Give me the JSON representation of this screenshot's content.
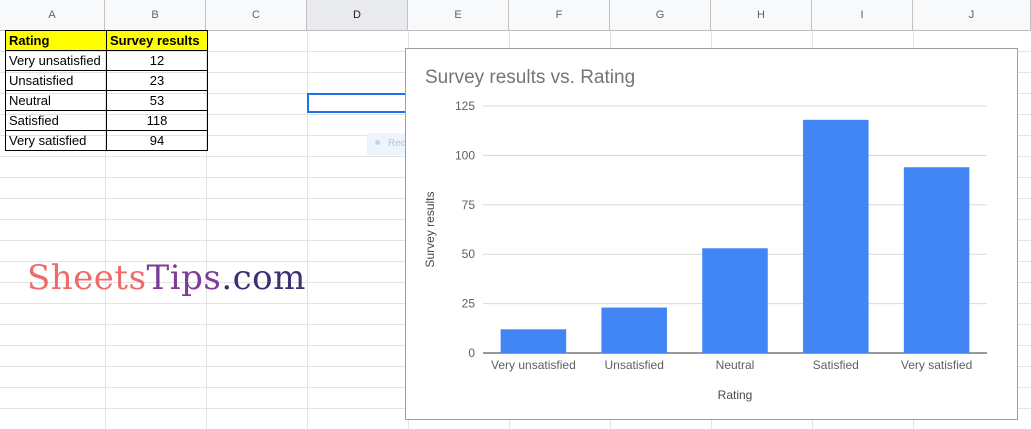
{
  "columns": [
    "A",
    "B",
    "C",
    "D",
    "E",
    "F",
    "G",
    "H",
    "I",
    "J"
  ],
  "active_column": "D",
  "table": {
    "headers": [
      "Rating",
      "Survey results"
    ],
    "rows": [
      [
        "Very unsatisfied",
        "12"
      ],
      [
        "Unsatisfied",
        "23"
      ],
      [
        "Neutral",
        "53"
      ],
      [
        "Satisfied",
        "118"
      ],
      [
        "Very satisfied",
        "94"
      ]
    ]
  },
  "snip_tooltip": "Rectangular Snip",
  "watermark": {
    "part1": "Sheets",
    "part2": "Tips",
    "part3": ".com"
  },
  "colors": {
    "bar": "#4285f4",
    "header_fill": "#ffff00",
    "selection": "#1a73e8"
  },
  "chart_data": {
    "type": "bar",
    "title": "Survey results vs. Rating",
    "xlabel": "Rating",
    "ylabel": "Survey results",
    "categories": [
      "Very unsatisfied",
      "Unsatisfied",
      "Neutral",
      "Satisfied",
      "Very satisfied"
    ],
    "values": [
      12,
      23,
      53,
      118,
      94
    ],
    "ylim": [
      0,
      125
    ],
    "yticks": [
      0,
      25,
      50,
      75,
      100,
      125
    ],
    "grid": true,
    "legend": "none"
  }
}
